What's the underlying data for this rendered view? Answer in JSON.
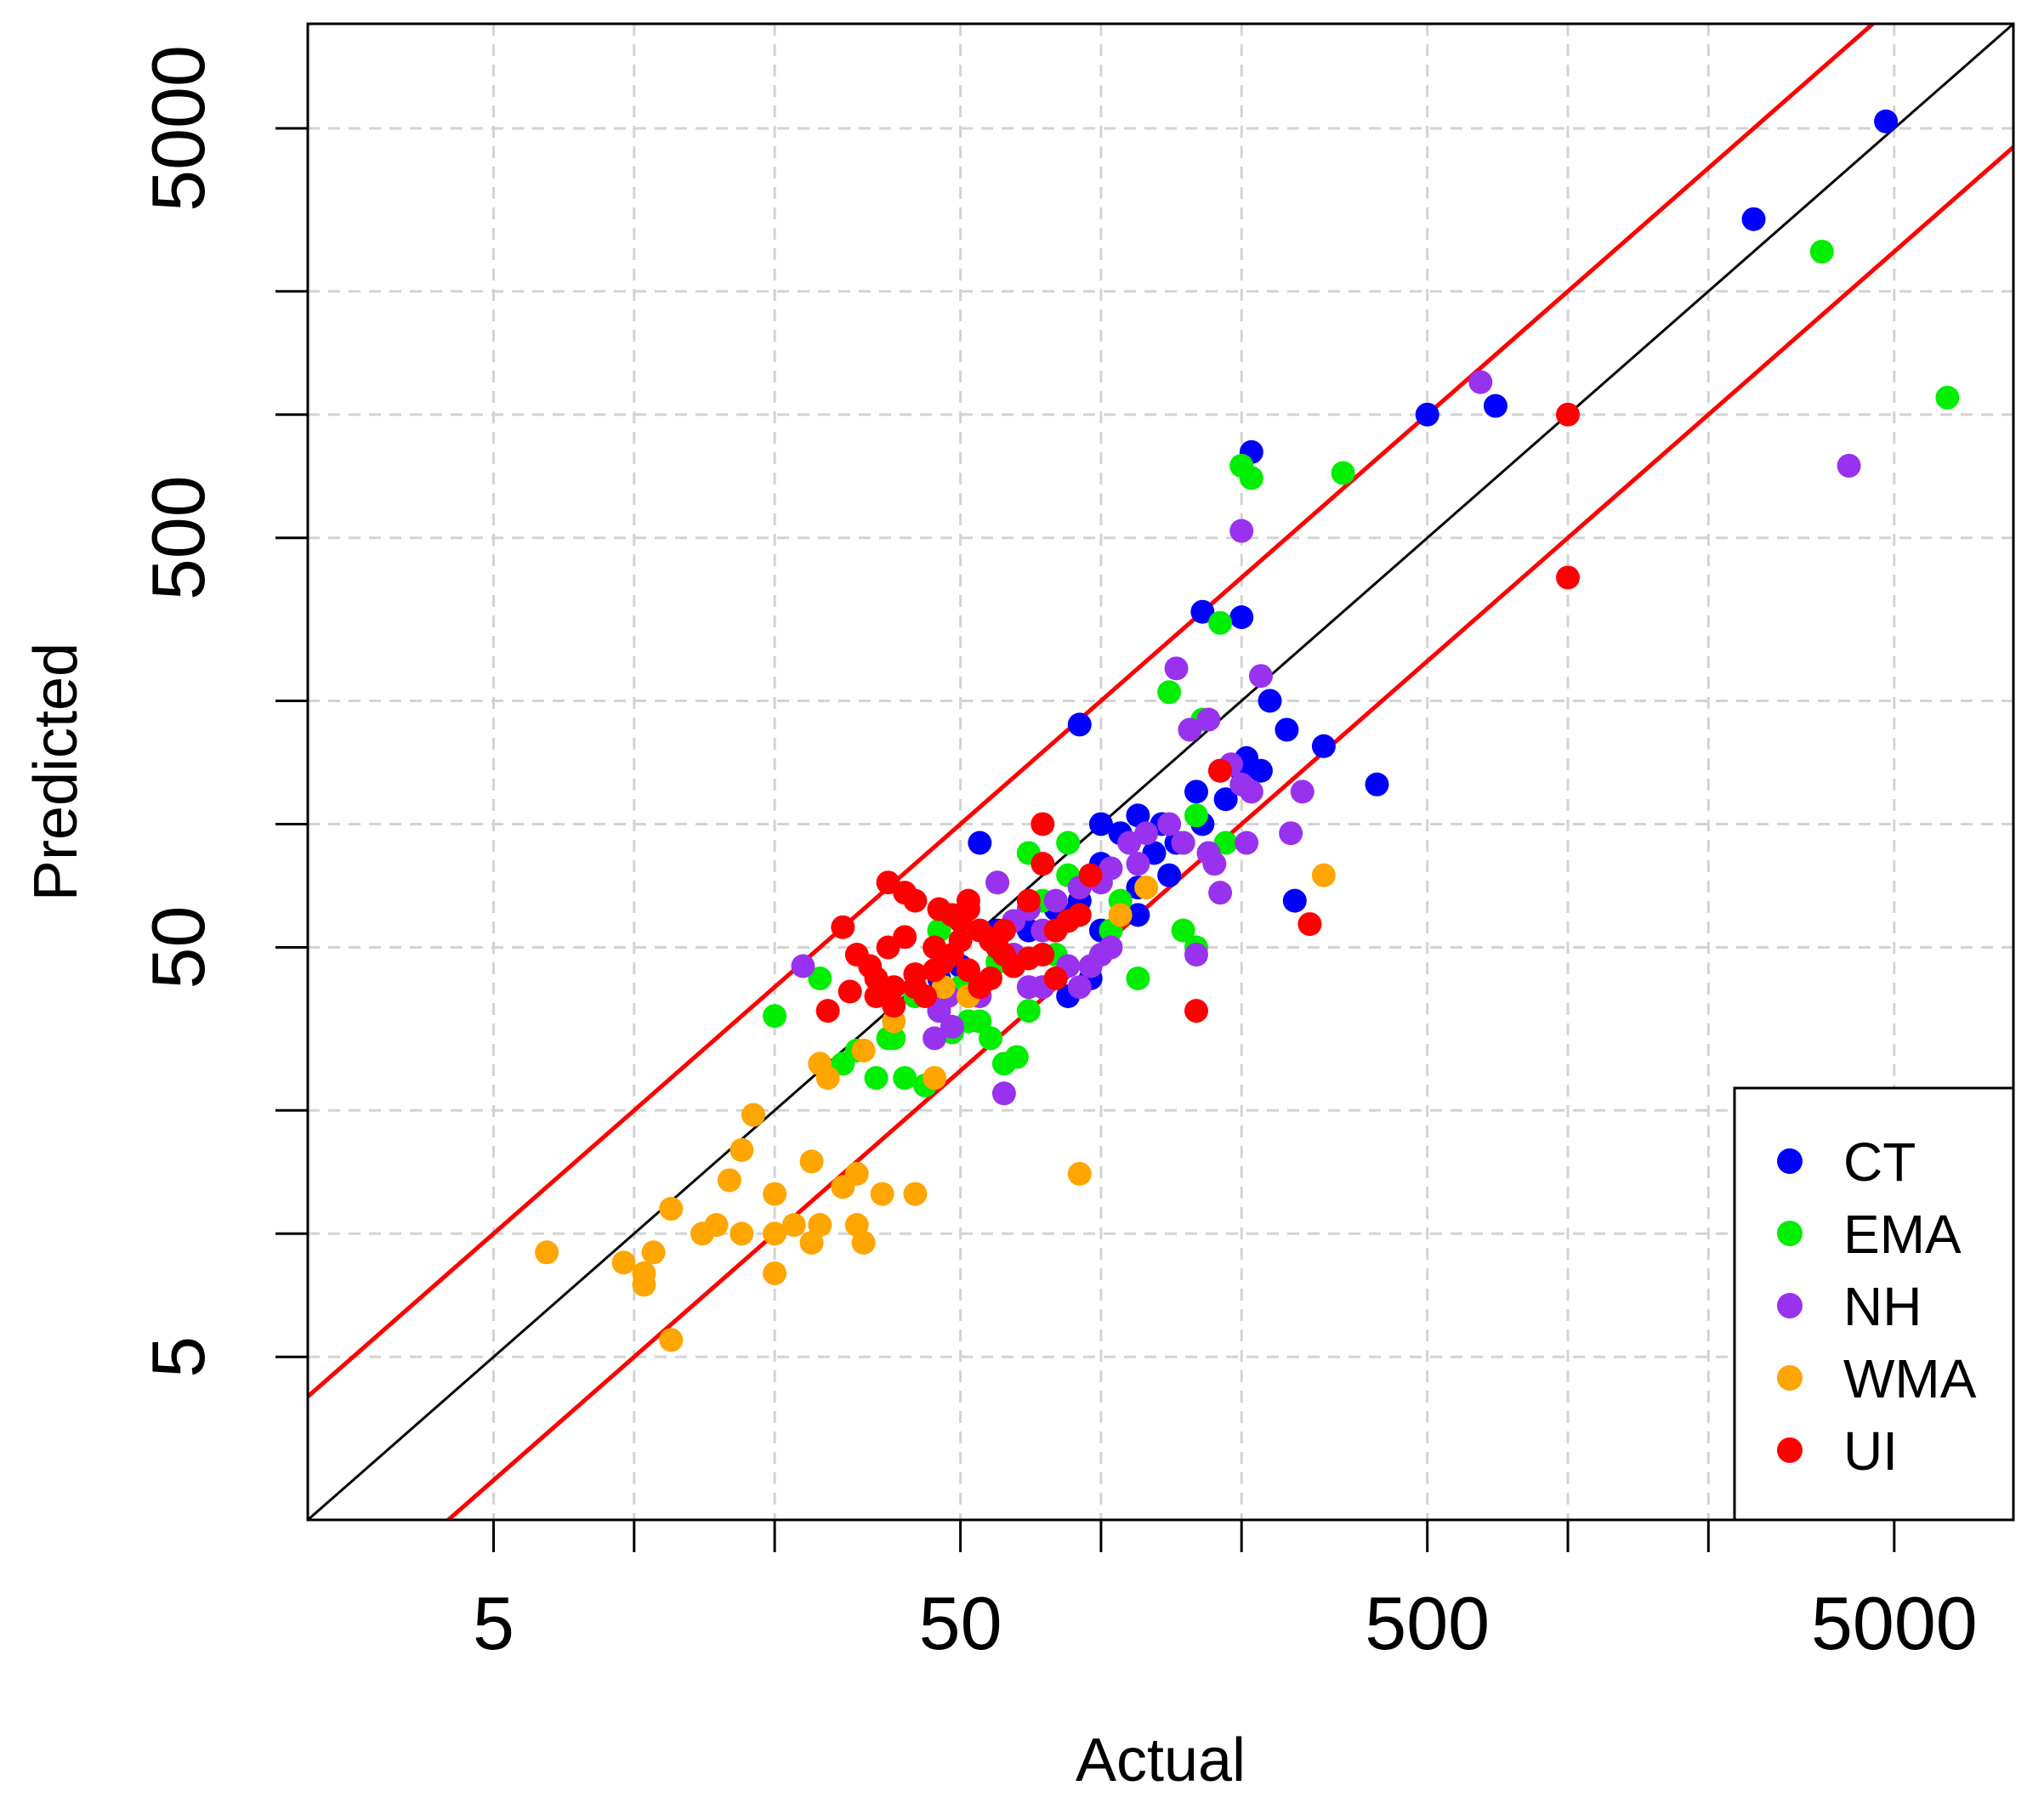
{
  "chart_data": {
    "type": "scatter",
    "xlabel": "Actual",
    "ylabel": "Predicted",
    "xscale": "log",
    "yscale": "log",
    "xlim": [
      2.0,
      9000
    ],
    "ylim": [
      2.0,
      9000
    ],
    "x_ticks": [
      5,
      50,
      500,
      5000
    ],
    "y_ticks": [
      5,
      50,
      500,
      5000
    ],
    "grid": true,
    "legend_position": "bottom-right",
    "reference_lines": [
      {
        "name": "1:1",
        "color": "#000000",
        "factor": 1
      },
      {
        "name": "upper bound",
        "color": "#ff0000",
        "factor": 2
      },
      {
        "name": "lower bound",
        "color": "#ff0000",
        "factor": 0.5
      }
    ],
    "series": [
      {
        "name": "CT",
        "color": "#0000ff",
        "points": [
          [
            4800,
            5200
          ],
          [
            2500,
            3000
          ],
          [
            500,
            1000
          ],
          [
            700,
            1050
          ],
          [
            210,
            810
          ],
          [
            165,
            330
          ],
          [
            200,
            320
          ],
          [
            90,
            175
          ],
          [
            250,
            170
          ],
          [
            200,
            135
          ],
          [
            220,
            135
          ],
          [
            390,
            125
          ],
          [
            300,
            155
          ],
          [
            230,
            200
          ],
          [
            205,
            145
          ],
          [
            180,
            135
          ],
          [
            185,
            115
          ],
          [
            160,
            120
          ],
          [
            165,
            100
          ],
          [
            145,
            90
          ],
          [
            135,
            100
          ],
          [
            120,
            105
          ],
          [
            110,
            95
          ],
          [
            100,
            100
          ],
          [
            130,
            85
          ],
          [
            100,
            80
          ],
          [
            95,
            75
          ],
          [
            120,
            70
          ],
          [
            140,
            75
          ],
          [
            55,
            90
          ],
          [
            90,
            65
          ],
          [
            80,
            62
          ],
          [
            85,
            60
          ],
          [
            260,
            65
          ],
          [
            120,
            60
          ],
          [
            100,
            55
          ],
          [
            70,
            55
          ],
          [
            60,
            55
          ],
          [
            95,
            42
          ],
          [
            85,
            38
          ],
          [
            40,
            38
          ],
          [
            45,
            42
          ],
          [
            65,
            45
          ],
          [
            50,
            45
          ]
        ]
      },
      {
        "name": "EMA",
        "color": "#00ee00",
        "points": [
          [
            6500,
            1100
          ],
          [
            3500,
            2500
          ],
          [
            210,
            700
          ],
          [
            200,
            750
          ],
          [
            330,
            720
          ],
          [
            180,
            310
          ],
          [
            140,
            210
          ],
          [
            165,
            180
          ],
          [
            185,
            90
          ],
          [
            160,
            105
          ],
          [
            150,
            90
          ],
          [
            70,
            85
          ],
          [
            85,
            90
          ],
          [
            85,
            75
          ],
          [
            60,
            72
          ],
          [
            75,
            65
          ],
          [
            110,
            65
          ],
          [
            105,
            55
          ],
          [
            150,
            55
          ],
          [
            160,
            50
          ],
          [
            80,
            48
          ],
          [
            60,
            46
          ],
          [
            95,
            45
          ],
          [
            120,
            42
          ],
          [
            50,
            40
          ],
          [
            40,
            38
          ],
          [
            55,
            38
          ],
          [
            45,
            35
          ],
          [
            36,
            30
          ],
          [
            25,
            42
          ],
          [
            20,
            34
          ],
          [
            28,
            26
          ],
          [
            30,
            28
          ],
          [
            35,
            30
          ],
          [
            38,
            24
          ],
          [
            33,
            24
          ],
          [
            42,
            23
          ],
          [
            52,
            33
          ],
          [
            58,
            30
          ],
          [
            62,
            26
          ],
          [
            66,
            27
          ],
          [
            48,
            31
          ],
          [
            55,
            33
          ],
          [
            70,
            35
          ],
          [
            45,
            55
          ]
        ]
      },
      {
        "name": "NH",
        "color": "#9932ee",
        "points": [
          [
            650,
            1200
          ],
          [
            4000,
            750
          ],
          [
            200,
            520
          ],
          [
            145,
            240
          ],
          [
            220,
            230
          ],
          [
            170,
            180
          ],
          [
            155,
            170
          ],
          [
            180,
            135
          ],
          [
            190,
            140
          ],
          [
            200,
            125
          ],
          [
            210,
            120
          ],
          [
            270,
            120
          ],
          [
            255,
            95
          ],
          [
            205,
            90
          ],
          [
            175,
            80
          ],
          [
            170,
            85
          ],
          [
            150,
            90
          ],
          [
            140,
            100
          ],
          [
            125,
            95
          ],
          [
            115,
            90
          ],
          [
            120,
            80
          ],
          [
            105,
            78
          ],
          [
            100,
            72
          ],
          [
            180,
            68
          ],
          [
            90,
            70
          ],
          [
            80,
            65
          ],
          [
            70,
            62
          ],
          [
            60,
            72
          ],
          [
            65,
            58
          ],
          [
            75,
            55
          ],
          [
            65,
            48
          ],
          [
            100,
            48
          ],
          [
            105,
            50
          ],
          [
            95,
            45
          ],
          [
            85,
            45
          ],
          [
            90,
            40
          ],
          [
            70,
            40
          ],
          [
            55,
            38
          ],
          [
            47,
            38
          ],
          [
            45,
            35
          ],
          [
            44,
            30
          ],
          [
            48,
            32
          ],
          [
            62,
            22
          ],
          [
            23,
            45
          ],
          [
            160,
            48
          ],
          [
            75,
            40
          ]
        ]
      },
      {
        "name": "WMA",
        "color": "#ffa500",
        "points": [
          [
            6.5,
            9.0
          ],
          [
            9.5,
            8.5
          ],
          [
            10.5,
            7.5
          ],
          [
            10.5,
            8.0
          ],
          [
            11,
            9.0
          ],
          [
            12,
            5.5
          ],
          [
            12,
            11.5
          ],
          [
            14,
            10
          ],
          [
            15,
            10.5
          ],
          [
            16,
            13.5
          ],
          [
            17,
            10
          ],
          [
            17,
            16
          ],
          [
            18,
            19.5
          ],
          [
            20,
            10
          ],
          [
            20,
            12.5
          ],
          [
            20,
            8.0
          ],
          [
            22,
            10.5
          ],
          [
            24,
            9.5
          ],
          [
            24,
            15
          ],
          [
            25,
            10.5
          ],
          [
            25,
            26
          ],
          [
            26,
            24
          ],
          [
            28,
            13
          ],
          [
            30,
            10.5
          ],
          [
            30,
            14
          ],
          [
            31,
            9.5
          ],
          [
            31,
            28
          ],
          [
            34,
            12.5
          ],
          [
            36,
            33
          ],
          [
            40,
            12.5
          ],
          [
            44,
            24
          ],
          [
            46,
            40
          ],
          [
            52,
            38
          ],
          [
            90,
            14
          ],
          [
            110,
            60
          ],
          [
            125,
            70
          ],
          [
            300,
            75
          ]
        ]
      },
      {
        "name": "UI",
        "color": "#ff0000",
        "points": [
          [
            1000,
            1000
          ],
          [
            1000,
            400
          ],
          [
            180,
            135
          ],
          [
            280,
            57
          ],
          [
            160,
            35
          ],
          [
            75,
            100
          ],
          [
            75,
            80
          ],
          [
            70,
            65
          ],
          [
            62,
            55
          ],
          [
            80,
            55
          ],
          [
            85,
            58
          ],
          [
            90,
            60
          ],
          [
            95,
            75
          ],
          [
            35,
            72
          ],
          [
            38,
            68
          ],
          [
            40,
            65
          ],
          [
            45,
            62
          ],
          [
            48,
            60
          ],
          [
            50,
            58
          ],
          [
            52,
            65
          ],
          [
            55,
            55
          ],
          [
            58,
            52
          ],
          [
            60,
            50
          ],
          [
            65,
            45
          ],
          [
            62,
            48
          ],
          [
            70,
            47
          ],
          [
            75,
            48
          ],
          [
            80,
            42
          ],
          [
            28,
            56
          ],
          [
            30,
            48
          ],
          [
            32,
            45
          ],
          [
            33,
            42
          ],
          [
            36,
            40
          ],
          [
            40,
            40
          ],
          [
            42,
            38
          ],
          [
            44,
            44
          ],
          [
            46,
            46
          ],
          [
            48,
            48
          ],
          [
            52,
            44
          ],
          [
            55,
            40
          ],
          [
            58,
            42
          ],
          [
            26,
            35
          ],
          [
            29,
            39
          ],
          [
            33,
            38
          ],
          [
            36,
            36
          ],
          [
            52,
            62
          ],
          [
            40,
            43
          ],
          [
            44,
            50
          ],
          [
            50,
            52
          ],
          [
            35,
            50
          ],
          [
            38,
            53
          ]
        ]
      }
    ]
  }
}
